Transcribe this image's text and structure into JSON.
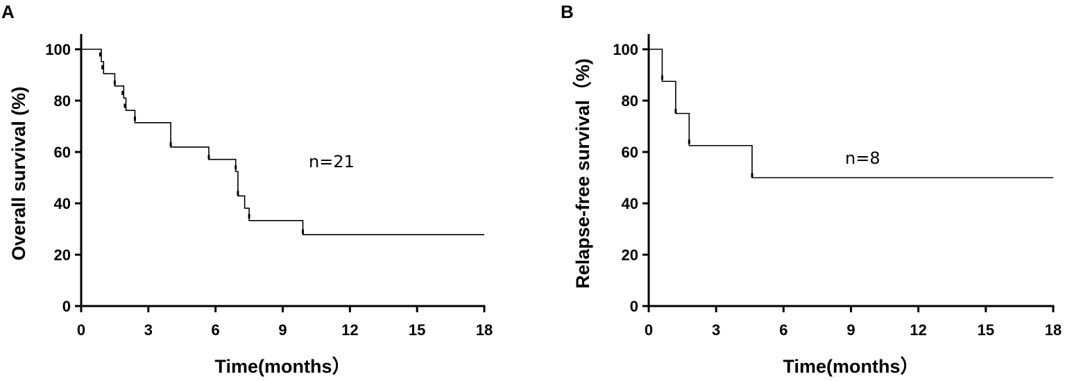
{
  "chart_data": [
    {
      "type": "line",
      "panel": "A",
      "title": "",
      "xlabel": "Time(months）",
      "ylabel": "Overall survival (%)",
      "xlim": [
        0,
        18
      ],
      "ylim": [
        0,
        100
      ],
      "xticks": [
        0,
        3,
        6,
        9,
        12,
        15,
        18
      ],
      "yticks": [
        0,
        20,
        40,
        60,
        80,
        100
      ],
      "annotation": "n=21",
      "step": [
        [
          0,
          100
        ],
        [
          0.9,
          95.2
        ],
        [
          1.0,
          90.5
        ],
        [
          1.5,
          85.7
        ],
        [
          1.9,
          81.0
        ],
        [
          2.0,
          76.2
        ],
        [
          2.4,
          71.4
        ],
        [
          4.0,
          61.9
        ],
        [
          5.7,
          57.1
        ],
        [
          6.9,
          52.4
        ],
        [
          7.0,
          42.9
        ],
        [
          7.3,
          38.1
        ],
        [
          7.5,
          33.3
        ],
        [
          9.9,
          27.8
        ],
        [
          18,
          27.8
        ]
      ],
      "censored": [
        [
          0.85,
          98
        ],
        [
          0.95,
          93
        ],
        [
          1.5,
          87
        ],
        [
          1.85,
          83
        ],
        [
          1.95,
          78
        ],
        [
          2.4,
          73
        ],
        [
          4.0,
          63
        ],
        [
          5.7,
          58
        ],
        [
          6.9,
          54
        ],
        [
          7.0,
          44
        ],
        [
          7.5,
          35
        ],
        [
          9.9,
          29
        ]
      ],
      "grid": false,
      "legend": "none"
    },
    {
      "type": "line",
      "panel": "B",
      "title": "",
      "xlabel": "Time(months）",
      "ylabel": "Relapse-free survival（%)",
      "xlim": [
        0,
        18
      ],
      "ylim": [
        0,
        100
      ],
      "xticks": [
        0,
        3,
        6,
        9,
        12,
        15,
        18
      ],
      "yticks": [
        0,
        20,
        40,
        60,
        80,
        100
      ],
      "annotation": "n=8",
      "step": [
        [
          0,
          100
        ],
        [
          0.6,
          87.5
        ],
        [
          1.2,
          75.0
        ],
        [
          1.8,
          62.5
        ],
        [
          4.6,
          50.0
        ],
        [
          18,
          50.0
        ]
      ],
      "censored": [
        [
          0.6,
          89
        ],
        [
          1.2,
          76
        ],
        [
          1.8,
          64
        ],
        [
          4.6,
          51
        ]
      ],
      "grid": false,
      "legend": "none"
    }
  ]
}
